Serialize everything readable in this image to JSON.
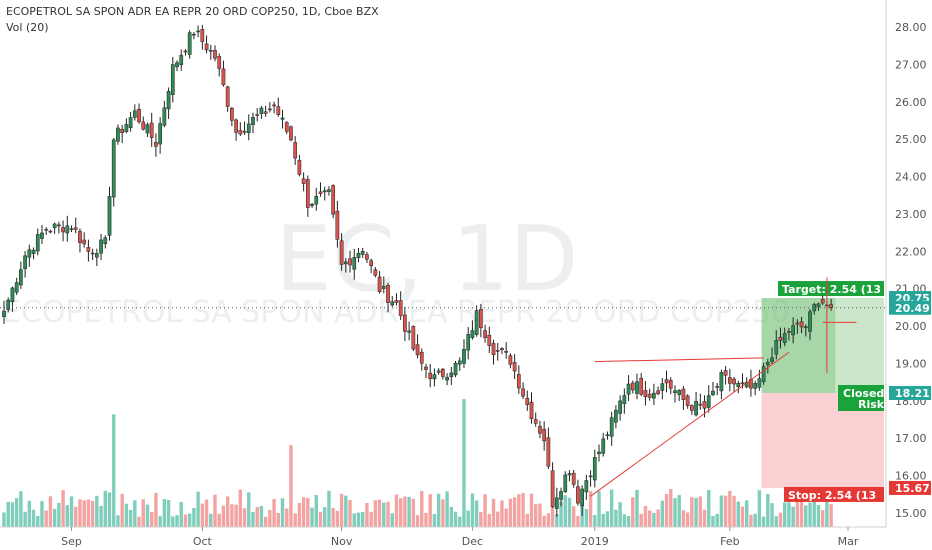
{
  "header": {
    "title": "ECOPETROL SA SPON ADR EA REPR 20 ORD COP250, 1D, Cboe BZX",
    "volume_label": "Vol (20)"
  },
  "watermark": {
    "symbol": "EC, 1D",
    "name": "ECOPETROL SA SPON ADR EA REPR 20 ORD COP250"
  },
  "colors": {
    "up": "#2e8b57",
    "down": "#d9534f",
    "vol_up": "#7fcdbb",
    "vol_down": "#f4a3a3",
    "target_zone": "#66bb6a",
    "stop_zone": "#f7b0b4",
    "trend": "#e53935",
    "last_price": "#26a69a"
  },
  "chart_data": {
    "type": "candlestick",
    "ylim": [
      14.7,
      28.35
    ],
    "yticks": [
      15.0,
      16.0,
      17.0,
      18.0,
      19.0,
      20.0,
      21.0,
      22.0,
      23.0,
      24.0,
      25.0,
      26.0,
      27.0,
      28.0
    ],
    "ytick_labels": [
      "15.00",
      "16.00",
      "17.00",
      "18.00",
      "19.00",
      "20.00",
      "21.00",
      "22.00",
      "23.00",
      "24.00",
      "25.00",
      "26.00",
      "27.00",
      "28.00"
    ],
    "xticks": [
      {
        "label": "Sep",
        "index": 16
      },
      {
        "label": "Oct",
        "index": 47
      },
      {
        "label": "Nov",
        "index": 80
      },
      {
        "label": "Dec",
        "index": 111
      },
      {
        "label": "2019",
        "index": 140
      },
      {
        "label": "Feb",
        "index": 172
      },
      {
        "label": "Mar",
        "index": 200
      }
    ],
    "price_path": [
      [
        0,
        20.4
      ],
      [
        5,
        21.9
      ],
      [
        10,
        22.6
      ],
      [
        16,
        22.7
      ],
      [
        20,
        22.0
      ],
      [
        24,
        22.2
      ],
      [
        26,
        25.0
      ],
      [
        31,
        25.7
      ],
      [
        36,
        24.9
      ],
      [
        40,
        26.9
      ],
      [
        45,
        27.9
      ],
      [
        50,
        27.2
      ],
      [
        55,
        25.2
      ],
      [
        60,
        25.6
      ],
      [
        64,
        25.9
      ],
      [
        68,
        25.0
      ],
      [
        72,
        23.3
      ],
      [
        77,
        23.5
      ],
      [
        80,
        21.6
      ],
      [
        85,
        22.1
      ],
      [
        89,
        21.0
      ],
      [
        93,
        20.6
      ],
      [
        98,
        19.1
      ],
      [
        102,
        18.6
      ],
      [
        108,
        19.0
      ],
      [
        112,
        20.3
      ],
      [
        116,
        19.4
      ],
      [
        120,
        19.1
      ],
      [
        124,
        17.9
      ],
      [
        128,
        17.0
      ],
      [
        130,
        15.3
      ],
      [
        134,
        16.2
      ],
      [
        136,
        15.4
      ],
      [
        140,
        16.4
      ],
      [
        144,
        17.4
      ],
      [
        148,
        18.5
      ],
      [
        153,
        18.2
      ],
      [
        157,
        18.5
      ],
      [
        162,
        17.9
      ],
      [
        166,
        17.8
      ],
      [
        170,
        18.6
      ],
      [
        174,
        18.4
      ],
      [
        178,
        18.3
      ],
      [
        182,
        19.3
      ],
      [
        186,
        19.9
      ],
      [
        190,
        20.0
      ],
      [
        193,
        20.75
      ],
      [
        196,
        20.49
      ]
    ],
    "volume_ylim": [
      0,
      1
    ],
    "volume_spikes": [
      {
        "index": 26,
        "level": 0.88
      },
      {
        "index": 68,
        "level": 0.64
      },
      {
        "index": 109,
        "level": 1.0
      }
    ],
    "last_price": 20.49,
    "price_tags": [
      {
        "value": 20.75,
        "label": "20.75",
        "color": "#26a69a"
      },
      {
        "value": 20.49,
        "label": "20.49",
        "color": "#26a69a"
      },
      {
        "value": 18.21,
        "label": "18.21",
        "color": "#26a69a"
      },
      {
        "value": 15.67,
        "label": "15.67",
        "color": "#e53935"
      }
    ],
    "position": {
      "start_index": 180,
      "entry": 18.21,
      "target": 20.75,
      "stop": 15.67,
      "target_label": "Target: 2.54 (13",
      "stop_label": "Stop: 2.54 (13",
      "closed_label": "Closed",
      "risk_label": "Risk"
    },
    "trendlines": [
      {
        "from": [
          139,
          15.45
        ],
        "to": [
          186,
          19.3
        ]
      },
      {
        "from": [
          140,
          19.05
        ],
        "to": [
          180,
          19.15
        ]
      },
      {
        "from": [
          194,
          20.1
        ],
        "to": [
          202,
          20.1
        ]
      }
    ],
    "crosshair": {
      "index": 195,
      "low": 18.75,
      "high": 21.3
    }
  }
}
